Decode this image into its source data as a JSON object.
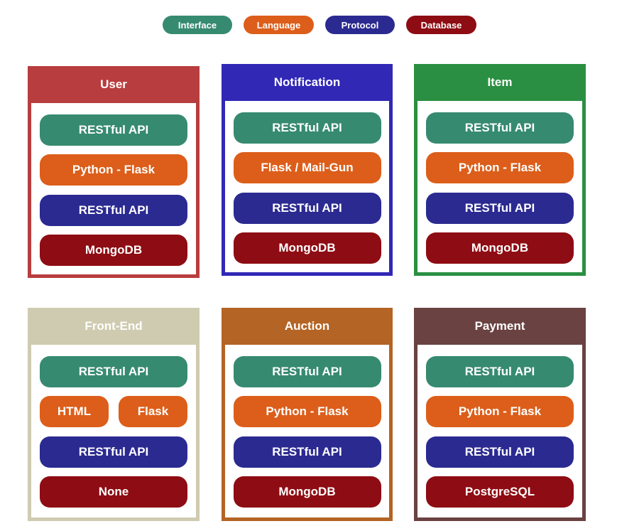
{
  "colors": {
    "interface": "#368a70",
    "language": "#dc5e1a",
    "protocol": "#2b2a91",
    "database": "#8e0c13"
  },
  "legend": [
    {
      "label": "Interface",
      "kind": "interface"
    },
    {
      "label": "Language",
      "kind": "language"
    },
    {
      "label": "Protocol",
      "kind": "protocol"
    },
    {
      "label": "Database",
      "kind": "database"
    }
  ],
  "services": [
    {
      "title": "User",
      "color": "#b83d3e",
      "rows": [
        [
          {
            "label": "RESTful API",
            "kind": "interface"
          }
        ],
        [
          {
            "label": "Python - Flask",
            "kind": "language"
          }
        ],
        [
          {
            "label": "RESTful API",
            "kind": "protocol"
          }
        ],
        [
          {
            "label": "MongoDB",
            "kind": "database"
          }
        ]
      ]
    },
    {
      "title": "Notification",
      "color": "#3128b6",
      "rows": [
        [
          {
            "label": "RESTful API",
            "kind": "interface"
          }
        ],
        [
          {
            "label": "Flask / Mail-Gun",
            "kind": "language"
          }
        ],
        [
          {
            "label": "RESTful API",
            "kind": "protocol"
          }
        ],
        [
          {
            "label": "MongoDB",
            "kind": "database"
          }
        ]
      ]
    },
    {
      "title": "Item",
      "color": "#2a8f42",
      "rows": [
        [
          {
            "label": "RESTful API",
            "kind": "interface"
          }
        ],
        [
          {
            "label": "Python - Flask",
            "kind": "language"
          }
        ],
        [
          {
            "label": "RESTful API",
            "kind": "protocol"
          }
        ],
        [
          {
            "label": "MongoDB",
            "kind": "database"
          }
        ]
      ]
    },
    {
      "title": "Front-End",
      "color": "#cfcbb0",
      "rows": [
        [
          {
            "label": "RESTful API",
            "kind": "interface"
          }
        ],
        [
          {
            "label": "HTML",
            "kind": "language"
          },
          {
            "label": "Flask",
            "kind": "language"
          }
        ],
        [
          {
            "label": "RESTful API",
            "kind": "protocol"
          }
        ],
        [
          {
            "label": "None",
            "kind": "database"
          }
        ]
      ]
    },
    {
      "title": "Auction",
      "color": "#b46424",
      "rows": [
        [
          {
            "label": "RESTful API",
            "kind": "interface"
          }
        ],
        [
          {
            "label": "Python - Flask",
            "kind": "language"
          }
        ],
        [
          {
            "label": "RESTful API",
            "kind": "protocol"
          }
        ],
        [
          {
            "label": "MongoDB",
            "kind": "database"
          }
        ]
      ]
    },
    {
      "title": "Payment",
      "color": "#6a4241",
      "rows": [
        [
          {
            "label": "RESTful API",
            "kind": "interface"
          }
        ],
        [
          {
            "label": "Python - Flask",
            "kind": "language"
          }
        ],
        [
          {
            "label": "RESTful API",
            "kind": "protocol"
          }
        ],
        [
          {
            "label": "PostgreSQL",
            "kind": "database"
          }
        ]
      ]
    }
  ]
}
